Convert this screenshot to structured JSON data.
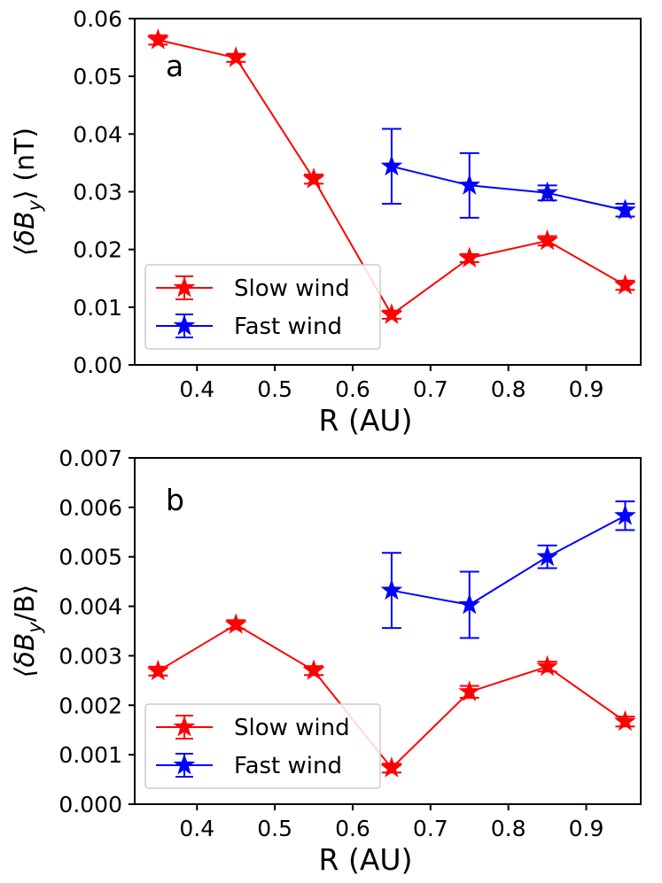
{
  "chart_data": [
    {
      "type": "line",
      "panel_label": "a",
      "xlabel": "R (AU)",
      "ylabel_prefix": "⟨δB",
      "ylabel_sub": "y",
      "ylabel_suffix": "⟩ (nT)",
      "xlim": [
        0.32,
        0.97
      ],
      "ylim": [
        0.0,
        0.06
      ],
      "x_ticks": [
        0.4,
        0.5,
        0.6,
        0.7,
        0.8,
        0.9
      ],
      "x_tick_labels": [
        "0.4",
        "0.5",
        "0.6",
        "0.7",
        "0.8",
        "0.9"
      ],
      "y_ticks": [
        0.0,
        0.01,
        0.02,
        0.03,
        0.04,
        0.05,
        0.06
      ],
      "y_tick_labels": [
        "0.00",
        "0.01",
        "0.02",
        "0.03",
        "0.04",
        "0.05",
        "0.06"
      ],
      "legend_position": "lower-left",
      "series": [
        {
          "name": "Slow wind",
          "color": "#ff0000",
          "x": [
            0.35,
            0.45,
            0.55,
            0.65,
            0.75,
            0.85,
            0.95
          ],
          "y": [
            0.0563,
            0.0532,
            0.0322,
            0.0087,
            0.0185,
            0.0215,
            0.0138
          ],
          "err": [
            0.0008,
            0.0007,
            0.0008,
            0.0007,
            0.0007,
            0.0008,
            0.0008
          ]
        },
        {
          "name": "Fast wind",
          "color": "#0000ff",
          "x": [
            0.65,
            0.75,
            0.85,
            0.95
          ],
          "y": [
            0.0344,
            0.0311,
            0.0298,
            0.0268
          ],
          "err": [
            0.0065,
            0.0056,
            0.0013,
            0.0011
          ]
        }
      ]
    },
    {
      "type": "line",
      "panel_label": "b",
      "xlabel": "R (AU)",
      "ylabel_prefix": "⟨δB",
      "ylabel_sub": "y",
      "ylabel_suffix": "/B⟩",
      "xlim": [
        0.32,
        0.97
      ],
      "ylim": [
        0.0,
        0.007
      ],
      "x_ticks": [
        0.4,
        0.5,
        0.6,
        0.7,
        0.8,
        0.9
      ],
      "x_tick_labels": [
        "0.4",
        "0.5",
        "0.6",
        "0.7",
        "0.8",
        "0.9"
      ],
      "y_ticks": [
        0.0,
        0.001,
        0.002,
        0.003,
        0.004,
        0.005,
        0.006,
        0.007
      ],
      "y_tick_labels": [
        "0.000",
        "0.001",
        "0.002",
        "0.003",
        "0.004",
        "0.005",
        "0.006",
        "0.007"
      ],
      "legend_position": "lower-left",
      "series": [
        {
          "name": "Slow wind",
          "color": "#ff0000",
          "x": [
            0.35,
            0.45,
            0.55,
            0.65,
            0.75,
            0.85,
            0.95
          ],
          "y": [
            0.00269,
            0.00363,
            0.0027,
            0.00073,
            0.00227,
            0.00278,
            0.00167
          ],
          "err": [
            9e-05,
            9e-05,
            9e-05,
            9e-05,
            0.00012,
            0.0001,
            0.0001
          ]
        },
        {
          "name": "Fast wind",
          "color": "#0000ff",
          "x": [
            0.65,
            0.75,
            0.85,
            0.95
          ],
          "y": [
            0.00432,
            0.00403,
            0.005,
            0.00583
          ],
          "err": [
            0.00076,
            0.00067,
            0.00023,
            0.00029
          ]
        }
      ]
    }
  ]
}
